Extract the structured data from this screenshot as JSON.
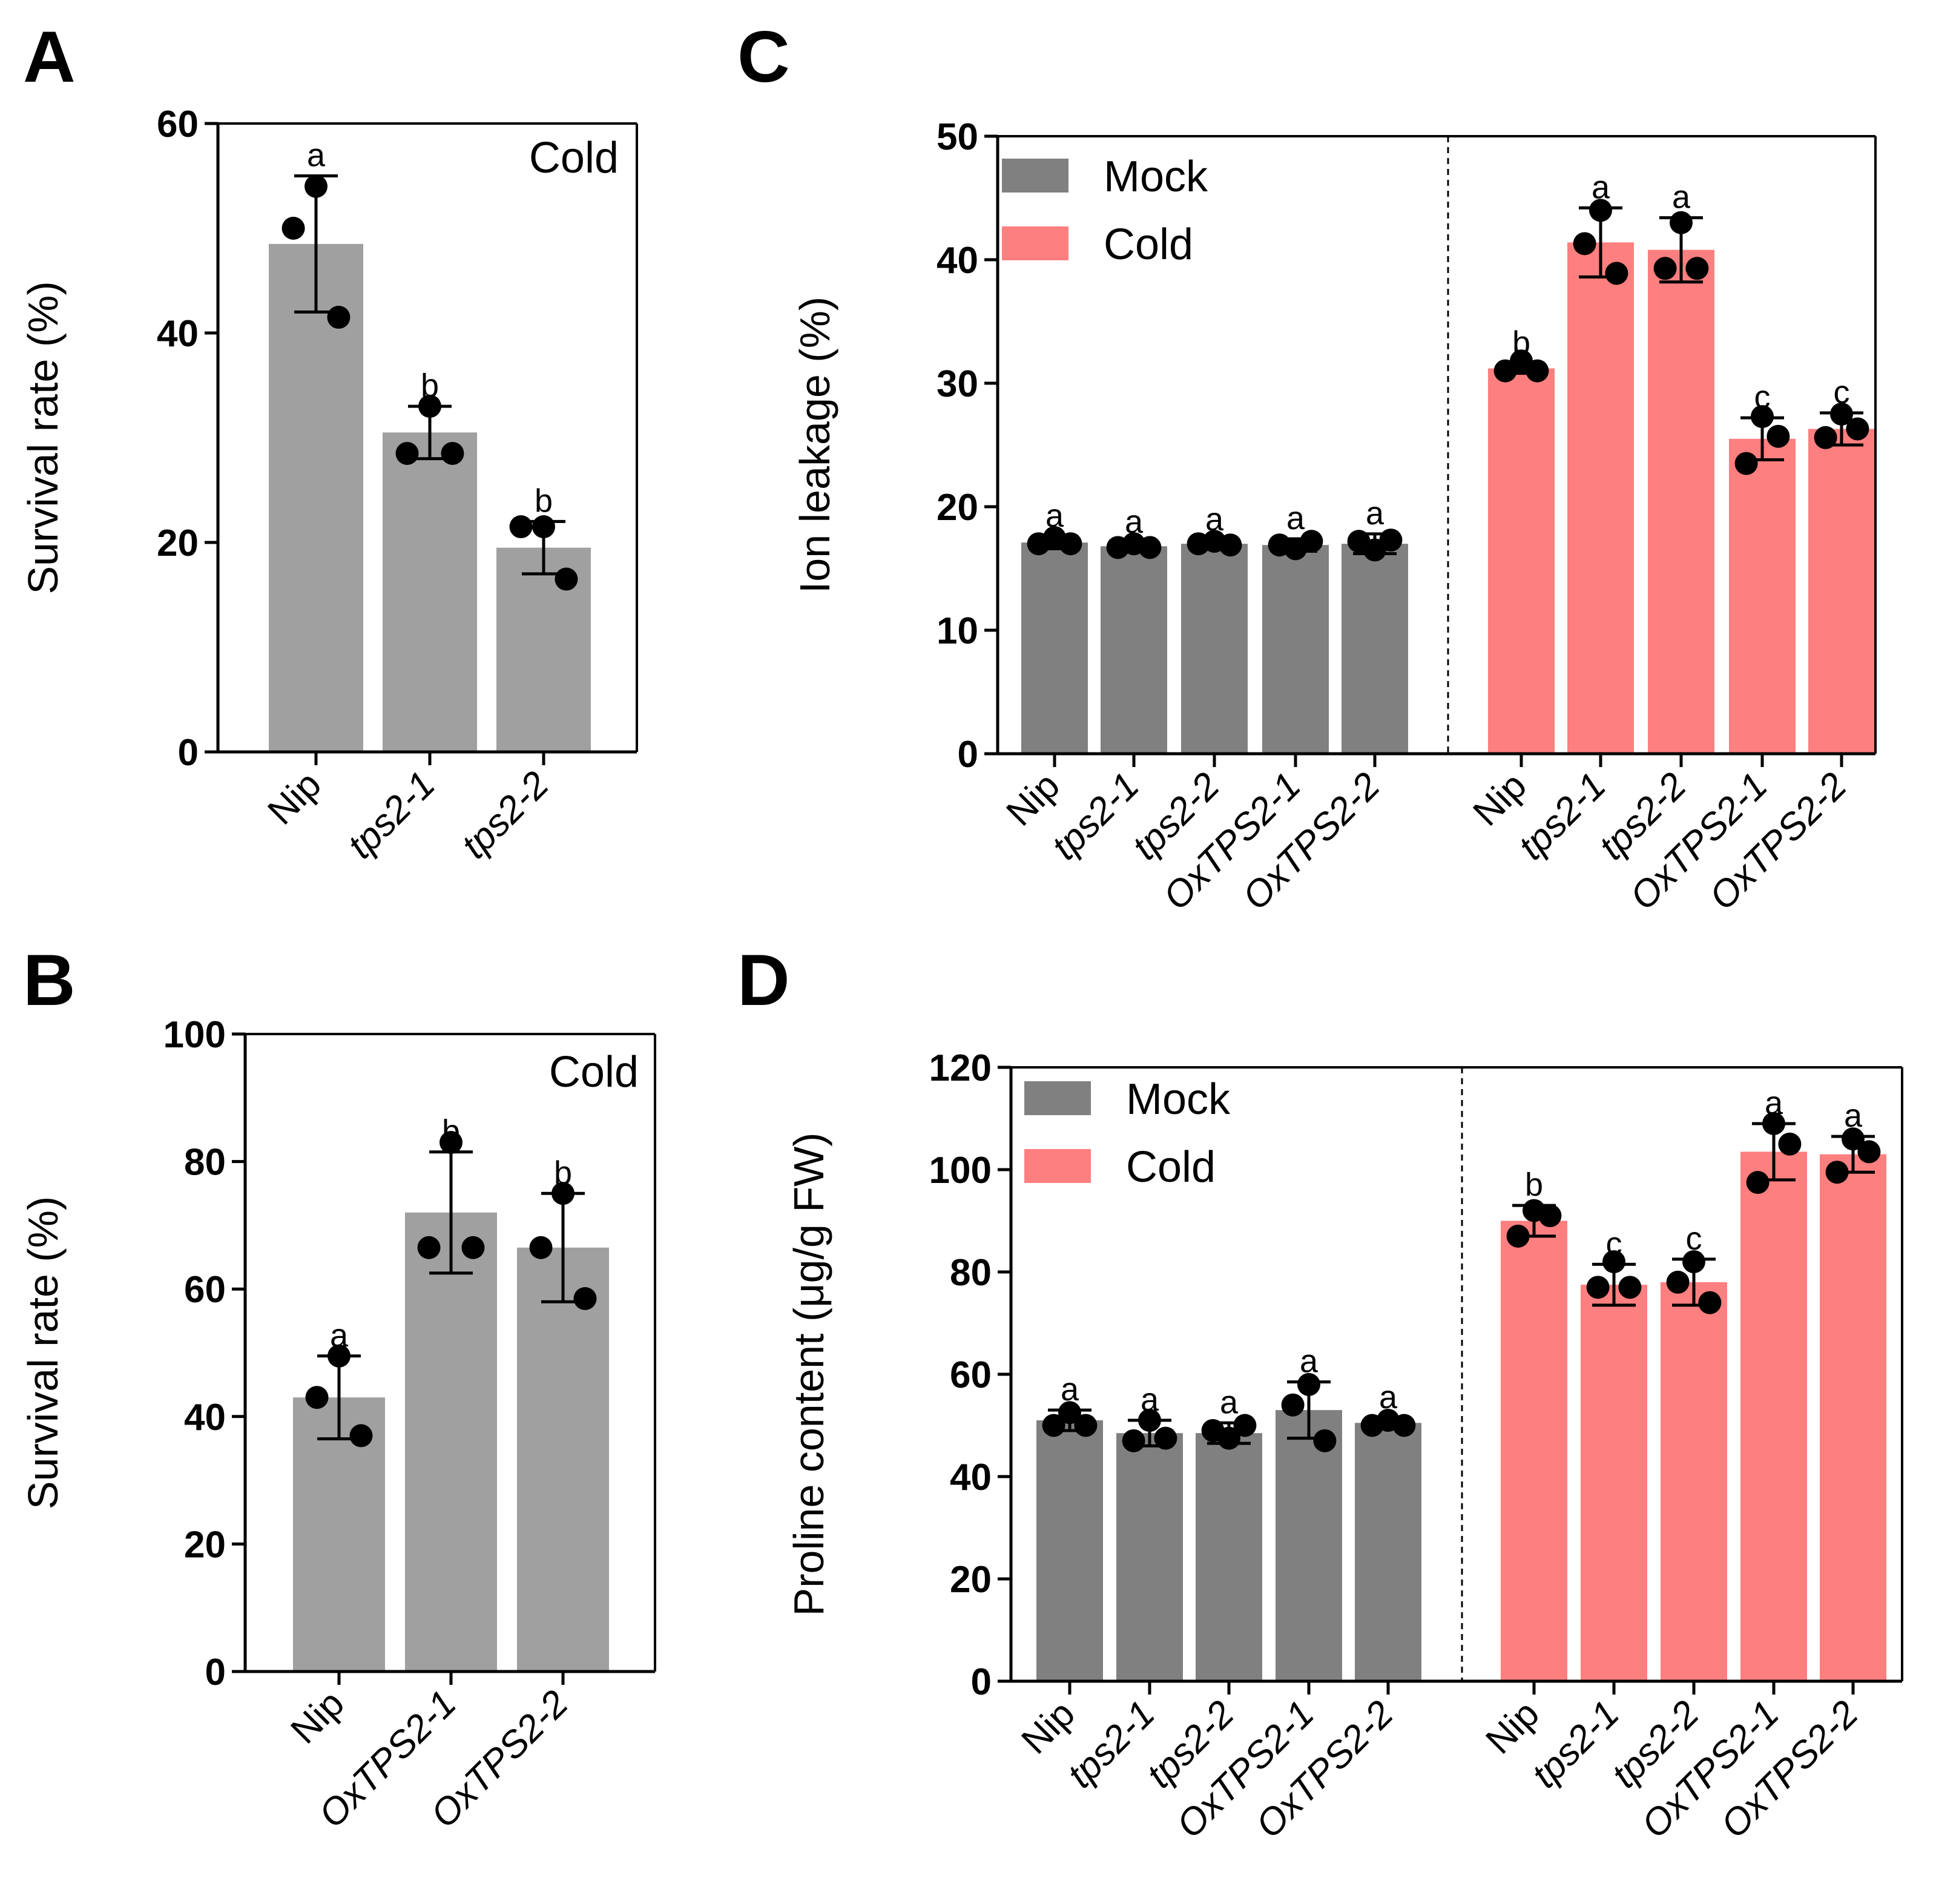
{
  "colors": {
    "gray_single": "#a0a0a0",
    "mock": "#808080",
    "cold": "#fe7f7f",
    "axis": "#000000"
  },
  "chart_data": [
    {
      "panel": "A",
      "type": "bar",
      "title": "",
      "xlabel": "",
      "ylabel": "Survival rate (%)",
      "ylim": [
        0,
        60
      ],
      "yticks": [
        0,
        20,
        40,
        60
      ],
      "condition_label": "Cold",
      "categories": [
        {
          "label": "Nip",
          "italic": false
        },
        {
          "label": "tps2-1",
          "italic": true
        },
        {
          "label": "tps2-2",
          "italic": true
        }
      ],
      "series": [
        {
          "name": "Cold",
          "color_key": "gray_single",
          "values": [
            48.5,
            30.5,
            19.5
          ],
          "sd": [
            6.5,
            2.5,
            2.5
          ],
          "points": [
            [
              54,
              50,
              41.5
            ],
            [
              33,
              28.5,
              28.5
            ],
            [
              21.5,
              21.5,
              16.5
            ]
          ],
          "letters": [
            "a",
            "b",
            "b"
          ]
        }
      ]
    },
    {
      "panel": "B",
      "type": "bar",
      "title": "",
      "xlabel": "",
      "ylabel": "Survival rate (%)",
      "ylim": [
        0,
        100
      ],
      "yticks": [
        0,
        20,
        40,
        60,
        80,
        100
      ],
      "condition_label": "Cold",
      "categories": [
        {
          "label": "Nip",
          "italic": false
        },
        {
          "label": "OxTPS2-1",
          "italic": true
        },
        {
          "label": "OxTPS2-2",
          "italic": true
        }
      ],
      "series": [
        {
          "name": "Cold",
          "color_key": "gray_single",
          "values": [
            43,
            72,
            66.5
          ],
          "sd": [
            6.5,
            9.5,
            8.5
          ],
          "points": [
            [
              49.5,
              43,
              37
            ],
            [
              83,
              66.5,
              66.5
            ],
            [
              75,
              66.5,
              58.5
            ]
          ],
          "letters": [
            "a",
            "b",
            "b"
          ]
        }
      ]
    },
    {
      "panel": "C",
      "type": "bar",
      "title": "",
      "xlabel": "",
      "ylabel": "Ion leakage (%)",
      "ylim": [
        0,
        50
      ],
      "yticks": [
        0,
        10,
        20,
        30,
        40,
        50
      ],
      "legend": [
        "Mock",
        "Cold"
      ],
      "legend_position": "top-left",
      "categories": [
        {
          "label": "Nip",
          "italic": false
        },
        {
          "label": "tps2-1",
          "italic": true
        },
        {
          "label": "tps2-2",
          "italic": true
        },
        {
          "label": "OxTPS2-1",
          "italic": true
        },
        {
          "label": "OxTPS2-2",
          "italic": true
        }
      ],
      "series": [
        {
          "name": "Mock",
          "color_key": "mock",
          "values": [
            17.1,
            16.8,
            17.0,
            16.9,
            17.0
          ],
          "sd": [
            0.5,
            0.3,
            0.3,
            0.5,
            0.8
          ],
          "points": [
            [
              17.5,
              17.0,
              17.0
            ],
            [
              17.0,
              16.7,
              16.7
            ],
            [
              17.2,
              17.0,
              16.9
            ],
            [
              16.6,
              16.9,
              17.2
            ],
            [
              16.5,
              17.2,
              17.3
            ]
          ],
          "letters": [
            "a",
            "a",
            "a",
            "a",
            "a"
          ]
        },
        {
          "name": "Cold",
          "color_key": "cold",
          "values": [
            31.2,
            41.4,
            40.8,
            25.5,
            26.3
          ],
          "sd": [
            0.4,
            2.8,
            2.6,
            1.7,
            1.3
          ],
          "points": [
            [
              31.8,
              31.0,
              31.0
            ],
            [
              44.0,
              41.3,
              38.9
            ],
            [
              43.0,
              39.3,
              39.3
            ],
            [
              27.3,
              23.5,
              25.7
            ],
            [
              27.5,
              25.6,
              26.3
            ]
          ],
          "letters": [
            "b",
            "a",
            "a",
            "c",
            "c"
          ]
        }
      ]
    },
    {
      "panel": "D",
      "type": "bar",
      "title": "",
      "xlabel": "",
      "ylabel": "Proline content (μg/g FW)",
      "ylim": [
        0,
        120
      ],
      "yticks": [
        0,
        20,
        40,
        60,
        80,
        100,
        120
      ],
      "legend": [
        "Mock",
        "Cold"
      ],
      "legend_position": "top-left",
      "categories": [
        {
          "label": "Nip",
          "italic": false
        },
        {
          "label": "tps2-1",
          "italic": true
        },
        {
          "label": "tps2-2",
          "italic": true
        },
        {
          "label": "OxTPS2-1",
          "italic": true
        },
        {
          "label": "OxTPS2-2",
          "italic": true
        }
      ],
      "series": [
        {
          "name": "Mock",
          "color_key": "mock",
          "values": [
            51,
            48.5,
            48.5,
            53,
            50.5
          ],
          "sd": [
            2.0,
            2.5,
            2.0,
            5.5,
            1.0
          ],
          "points": [
            [
              52.5,
              50,
              50
            ],
            [
              51,
              47,
              47.5
            ],
            [
              47.5,
              49,
              50
            ],
            [
              58,
              54,
              47
            ],
            [
              51,
              50,
              50
            ]
          ],
          "letters": [
            "a",
            "a",
            "a",
            "a",
            "a"
          ]
        },
        {
          "name": "Cold",
          "color_key": "cold",
          "values": [
            90,
            77.5,
            78,
            103.5,
            103
          ],
          "sd": [
            3.0,
            4.0,
            4.5,
            5.5,
            3.5
          ],
          "points": [
            [
              92,
              87,
              91
            ],
            [
              82,
              77,
              77
            ],
            [
              82,
              78,
              74
            ],
            [
              109,
              97.5,
              105
            ],
            [
              106,
              99.5,
              103.5
            ]
          ],
          "letters": [
            "b",
            "c",
            "c",
            "a",
            "a"
          ]
        }
      ]
    }
  ]
}
